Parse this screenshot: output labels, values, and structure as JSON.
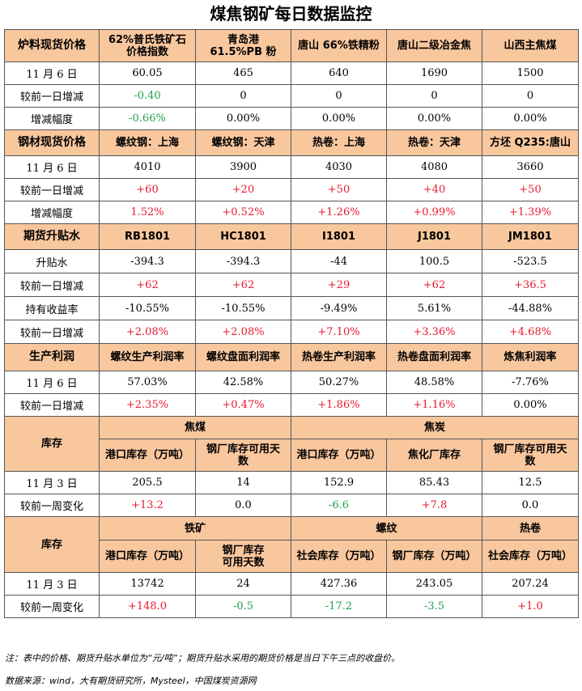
{
  "title": "煤焦钢矿每日数据监控",
  "s1": {
    "header": [
      "炉料现货价格",
      "62%普氏铁矿石\n价格指数",
      "青岛港\n61.5%PB 粉",
      "唐山 66%铁精粉",
      "唐山二级冶金焦",
      "山西主焦煤"
    ],
    "rows": [
      {
        "label": "11 月 6 日",
        "vals": [
          "60.05",
          "465",
          "640",
          "1690",
          "1500"
        ],
        "cls": [
          "",
          "",
          "",
          "",
          ""
        ]
      },
      {
        "label": "较前一日增减",
        "vals": [
          "-0.40",
          "0",
          "0",
          "0",
          "0"
        ],
        "cls": [
          "neg",
          "",
          "",
          "",
          ""
        ]
      },
      {
        "label": "增减幅度",
        "vals": [
          "-0.66%",
          "0.00%",
          "0.00%",
          "0.00%",
          "0.00%"
        ],
        "cls": [
          "neg",
          "",
          "",
          "",
          ""
        ]
      }
    ]
  },
  "s2": {
    "header": [
      "钢材现货价格",
      "螺纹钢：上海",
      "螺纹钢：天津",
      "热卷：上海",
      "热卷：天津",
      "方坯 Q235:唐山"
    ],
    "rows": [
      {
        "label": "11 月 6 日",
        "vals": [
          "4010",
          "3900",
          "4030",
          "4080",
          "3660"
        ],
        "cls": [
          "",
          "",
          "",
          "",
          ""
        ]
      },
      {
        "label": "较前一日增减",
        "vals": [
          "+60",
          "+20",
          "+50",
          "+40",
          "+50"
        ],
        "cls": [
          "pos",
          "pos",
          "pos",
          "pos",
          "pos"
        ]
      },
      {
        "label": "增减幅度",
        "vals": [
          "1.52%",
          "+0.52%",
          "+1.26%",
          "+0.99%",
          "+1.39%"
        ],
        "cls": [
          "pos",
          "pos",
          "pos",
          "pos",
          "pos"
        ]
      }
    ]
  },
  "s3": {
    "header": [
      "期货升贴水",
      "RB1801",
      "HC1801",
      "I1801",
      "J1801",
      "JM1801"
    ],
    "rows": [
      {
        "label": "升贴水",
        "vals": [
          "-394.3",
          "-394.3",
          "-44",
          "100.5",
          "-523.5"
        ],
        "cls": [
          "",
          "",
          "",
          "",
          ""
        ]
      },
      {
        "label": "较前一日增减",
        "vals": [
          "+62",
          "+62",
          "+29",
          "+62",
          "+36.5"
        ],
        "cls": [
          "pos",
          "pos",
          "pos",
          "pos",
          "pos"
        ]
      },
      {
        "label": "持有收益率",
        "vals": [
          "-10.55%",
          "-10.55%",
          "-9.49%",
          "5.61%",
          "-44.88%"
        ],
        "cls": [
          "",
          "",
          "",
          "",
          ""
        ]
      },
      {
        "label": "较前一日增减",
        "vals": [
          "+2.08%",
          "+2.08%",
          "+7.10%",
          "+3.36%",
          "+4.68%"
        ],
        "cls": [
          "pos",
          "pos",
          "pos",
          "pos",
          "pos"
        ]
      }
    ]
  },
  "s4": {
    "header": [
      "生产利润",
      "螺纹生产利润率",
      "螺纹盘面利润率",
      "热卷生产利润率",
      "热卷盘面利润率",
      "炼焦利润率"
    ],
    "rows": [
      {
        "label": "11 月 6 日",
        "vals": [
          "57.03%",
          "42.58%",
          "50.27%",
          "48.58%",
          "-7.76%"
        ],
        "cls": [
          "",
          "",
          "",
          "",
          ""
        ]
      },
      {
        "label": "较前一日增减",
        "vals": [
          "+2.35%",
          "+0.47%",
          "+1.86%",
          "+1.16%",
          "0.00%"
        ],
        "cls": [
          "pos",
          "pos",
          "pos",
          "pos",
          ""
        ]
      }
    ]
  },
  "s5": {
    "label": "库存",
    "group_a": "焦煤",
    "group_b": "焦炭",
    "sub": [
      "港口库存（万吨）",
      "钢厂库存可用天\n数",
      "港口库存（万吨）",
      "焦化厂库存",
      "钢厂库存可用天\n数"
    ],
    "rows": [
      {
        "label": "11 月 3 日",
        "vals": [
          "205.5",
          "14",
          "152.9",
          "85.43",
          "12.5"
        ],
        "cls": [
          "",
          "",
          "",
          "",
          ""
        ]
      },
      {
        "label": "较前一周变化",
        "vals": [
          "+13.2",
          "0.0",
          "-6.6",
          "+7.8",
          "0.0"
        ],
        "cls": [
          "pos",
          "",
          "neg",
          "pos",
          ""
        ]
      }
    ]
  },
  "s6": {
    "label": "库存",
    "group_a": "铁矿",
    "group_b": "螺纹",
    "group_c": "热卷",
    "sub": [
      "港口库存（万吨）",
      "钢厂库存\n可用天数",
      "社会库存（万吨）",
      "钢厂库存（万吨）",
      "社会库存（万吨）"
    ],
    "rows": [
      {
        "label": "11 月 3 日",
        "vals": [
          "13742",
          "24",
          "427.36",
          "243.05",
          "207.24"
        ],
        "cls": [
          "",
          "",
          "",
          "",
          ""
        ]
      },
      {
        "label": "较前一周变化",
        "vals": [
          "+148.0",
          "-0.5",
          "-17.2",
          "-3.5",
          "+1.0"
        ],
        "cls": [
          "pos",
          "neg",
          "neg",
          "neg",
          "pos"
        ]
      }
    ]
  },
  "notes": {
    "line1": "注：表中的价格、期货升贴水单位为“元/吨”；期货升贴水采用的期货价格是当日下午三点的收盘价。",
    "line2": "数据来源：wind，大有期货研究所，Mysteel，中国煤炭资源网"
  },
  "colors": {
    "header_bg": "#f9c79e",
    "positive": "#e8192c",
    "negative": "#1ea24a",
    "border": "#555555"
  }
}
